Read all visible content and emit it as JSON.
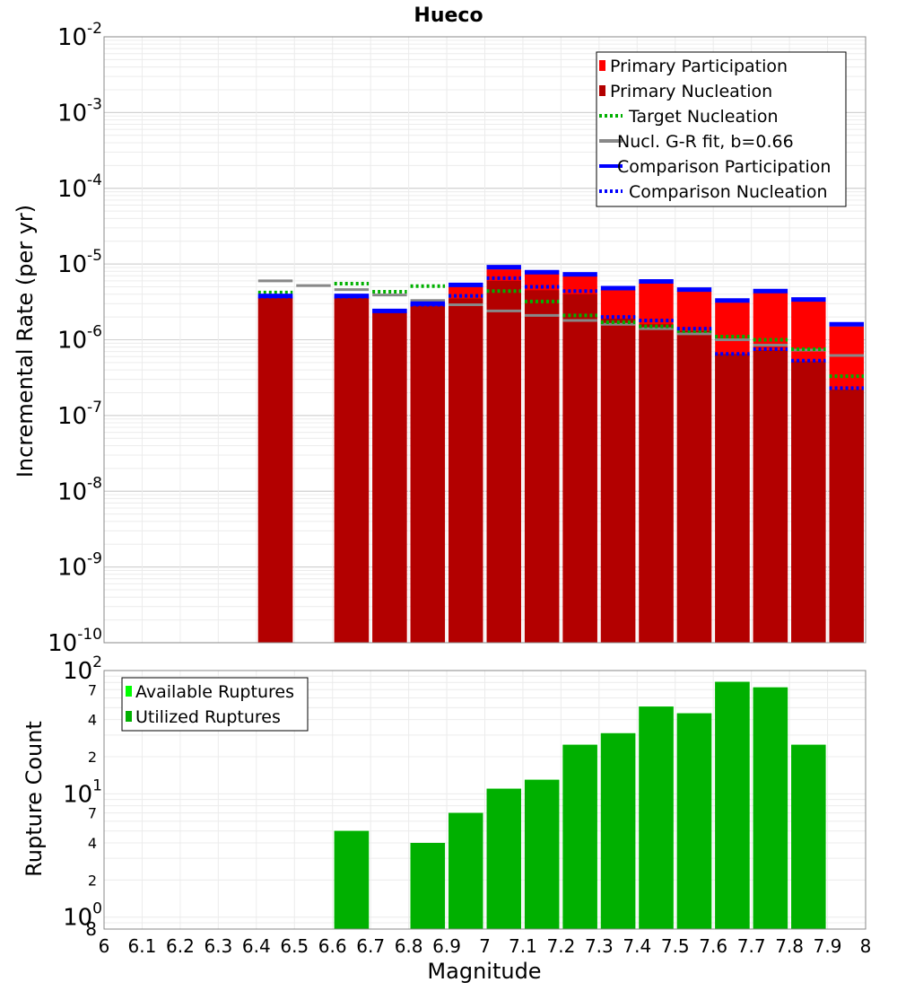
{
  "chart_data": [
    {
      "type": "bar",
      "title": "Hueco",
      "xlabel": "",
      "ylabel": "Incremental Rate (per yr)",
      "xlim": [
        6,
        8
      ],
      "ylim": [
        1e-10,
        0.01
      ],
      "yscale": "log",
      "grid": true,
      "legend_position": "top-right",
      "bin_width": 0.1,
      "series": [
        {
          "name": "Primary Participation",
          "kind": "bar",
          "color": "#ff0000",
          "x": [
            6.45,
            6.65,
            6.75,
            6.85,
            6.95,
            7.05,
            7.15,
            7.25,
            7.35,
            7.45,
            7.55,
            7.65,
            7.75,
            7.85,
            7.95
          ],
          "values": [
            3.6e-06,
            3.6e-06,
            2.3e-06,
            2.9e-06,
            5e-06,
            8.5e-06,
            7.5e-06,
            7e-06,
            4.6e-06,
            5.6e-06,
            4.4e-06,
            3.1e-06,
            4.2e-06,
            3.2e-06,
            1.5e-06
          ]
        },
        {
          "name": "Primary Nucleation",
          "kind": "bar",
          "color": "#b30000",
          "x": [
            6.45,
            6.65,
            6.75,
            6.85,
            6.95,
            7.05,
            7.15,
            7.25,
            7.35,
            7.45,
            7.55,
            7.65,
            7.75,
            7.85,
            7.95
          ],
          "values": [
            3.6e-06,
            3.6e-06,
            2.3e-06,
            2.8e-06,
            3.5e-06,
            6e-06,
            4.5e-06,
            4e-06,
            1.9e-06,
            1.6e-06,
            1.3e-06,
            6.5e-07,
            7.3e-07,
            5.2e-07,
            2.2e-07
          ]
        },
        {
          "name": "Target Nucleation",
          "kind": "step-dotted",
          "color": "#00b000",
          "x": [
            6.45,
            6.65,
            6.75,
            6.85,
            6.95,
            7.05,
            7.15,
            7.25,
            7.35,
            7.45,
            7.55,
            7.65,
            7.75,
            7.85,
            7.95
          ],
          "values": [
            4.2e-06,
            5.5e-06,
            4.3e-06,
            5.1e-06,
            3.8e-06,
            4.4e-06,
            3.2e-06,
            2.1e-06,
            1.7e-06,
            1.5e-06,
            1.3e-06,
            1.1e-06,
            1e-06,
            7.5e-07,
            3.3e-07
          ]
        },
        {
          "name": "Nucl. G-R fit, b=0.66",
          "kind": "step",
          "color": "#888888",
          "x": [
            6.45,
            6.55,
            6.65,
            6.75,
            6.85,
            6.95,
            7.05,
            7.15,
            7.25,
            7.35,
            7.45,
            7.55,
            7.65,
            7.75,
            7.85,
            7.95
          ],
          "values": [
            6e-06,
            5.2e-06,
            4.6e-06,
            3.9e-06,
            3.3e-06,
            2.9e-06,
            2.4e-06,
            2.1e-06,
            1.8e-06,
            1.6e-06,
            1.4e-06,
            1.2e-06,
            1e-06,
            8.5e-07,
            7.3e-07,
            6.2e-07
          ]
        },
        {
          "name": "Comparison Participation",
          "kind": "step",
          "color": "#0000ff",
          "x": [
            6.45,
            6.65,
            6.75,
            6.85,
            6.95,
            7.05,
            7.15,
            7.25,
            7.35,
            7.45,
            7.55,
            7.65,
            7.75,
            7.85,
            7.95
          ],
          "values": [
            3.8e-06,
            3.8e-06,
            2.4e-06,
            3e-06,
            5.3e-06,
            9.1e-06,
            7.8e-06,
            7.3e-06,
            4.8e-06,
            5.9e-06,
            4.6e-06,
            3.3e-06,
            4.4e-06,
            3.4e-06,
            1.6e-06
          ]
        },
        {
          "name": "Comparison Nucleation",
          "kind": "step-dotted",
          "color": "#0000ff",
          "x": [
            6.45,
            6.65,
            6.75,
            6.85,
            6.95,
            7.05,
            7.15,
            7.25,
            7.35,
            7.45,
            7.55,
            7.65,
            7.75,
            7.85,
            7.95
          ],
          "values": [
            3.7e-06,
            3.7e-06,
            2.4e-06,
            2.9e-06,
            3.8e-06,
            6.5e-06,
            5e-06,
            4.4e-06,
            2e-06,
            1.8e-06,
            1.4e-06,
            6.5e-07,
            7.5e-07,
            5.3e-07,
            2.3e-07
          ]
        }
      ]
    },
    {
      "type": "bar",
      "title": "",
      "xlabel": "Magnitude",
      "ylabel": "Rupture Count",
      "xlim": [
        6,
        8
      ],
      "ylim": [
        0.8,
        100
      ],
      "yscale": "log",
      "grid": true,
      "legend_position": "top-left",
      "bin_width": 0.1,
      "x_ticks": [
        "6",
        "6.1",
        "6.2",
        "6.3",
        "6.4",
        "6.5",
        "6.6",
        "6.7",
        "6.8",
        "6.9",
        "7",
        "7.1",
        "7.2",
        "7.3",
        "7.4",
        "7.5",
        "7.6",
        "7.7",
        "7.8",
        "7.9",
        "8"
      ],
      "series": [
        {
          "name": "Available Ruptures",
          "kind": "bar",
          "color": "#00ff00",
          "x": [
            6.65,
            6.85,
            6.95,
            7.05,
            7.15,
            7.25,
            7.35,
            7.45,
            7.55,
            7.65,
            7.75,
            7.85
          ],
          "values": [
            5,
            4,
            7,
            11,
            13,
            25,
            31,
            51,
            45,
            81,
            73,
            25
          ]
        },
        {
          "name": "Utilized Ruptures",
          "kind": "bar",
          "color": "#00b000",
          "x": [
            6.65,
            6.85,
            6.95,
            7.05,
            7.15,
            7.25,
            7.35,
            7.45,
            7.55,
            7.65,
            7.75,
            7.85
          ],
          "values": [
            5,
            4,
            7,
            11,
            13,
            25,
            31,
            51,
            45,
            81,
            73,
            25
          ]
        }
      ]
    }
  ]
}
